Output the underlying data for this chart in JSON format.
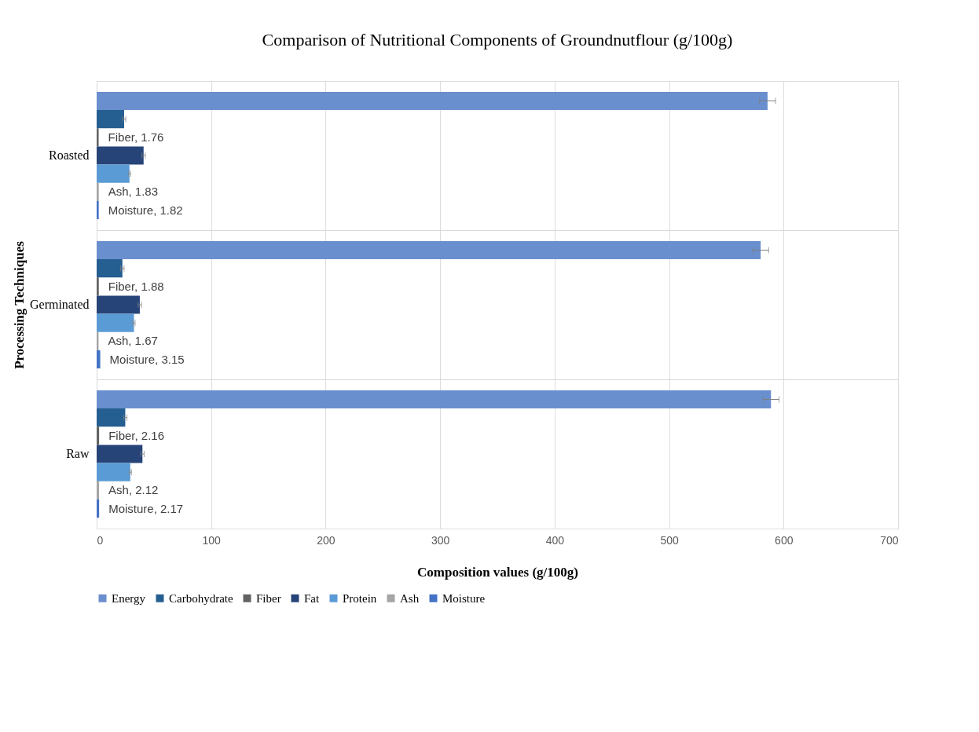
{
  "chart_data": {
    "type": "bar",
    "orientation": "horizontal",
    "title": "Comparison of Nutritional Components of Groundnutflour (g/100g)",
    "xlabel": "Composition values (g/100g)",
    "ylabel": "Processing Techniques",
    "categories": [
      "Roasted",
      "Germinated",
      "Raw"
    ],
    "series": [
      {
        "name": "Energy",
        "color": "#6a8fce",
        "values": [
          586,
          580,
          589
        ],
        "errors": [
          7,
          7,
          7
        ]
      },
      {
        "name": "Carbohydrate",
        "color": "#255e91",
        "values": [
          24,
          22.5,
          25
        ],
        "errors": [
          1.5,
          1.5,
          1.5
        ]
      },
      {
        "name": "Fiber",
        "color": "#636363",
        "values": [
          1.76,
          1.88,
          2.16
        ],
        "value_labels": [
          "Fiber, 1.76",
          "Fiber, 1.88",
          "Fiber, 2.16"
        ]
      },
      {
        "name": "Fat",
        "color": "#264478",
        "values": [
          41,
          37.7,
          40
        ],
        "errors": [
          1.5,
          1.5,
          1.5
        ]
      },
      {
        "name": "Protein",
        "color": "#5b9bd5",
        "values": [
          28.7,
          32.6,
          29.4
        ],
        "errors": [
          1,
          1,
          1
        ]
      },
      {
        "name": "Ash",
        "color": "#a5a5a5",
        "values": [
          1.83,
          1.67,
          2.12
        ],
        "value_labels": [
          "Ash, 1.83",
          "Ash, 1.67",
          "Ash, 2.12"
        ]
      },
      {
        "name": "Moisture",
        "color": "#4472c4",
        "values": [
          1.82,
          3.15,
          2.17
        ],
        "value_labels": [
          "Moisture, 1.82",
          "Moisture, 3.15",
          "Moisture, 2.17"
        ]
      }
    ],
    "xlim": [
      0,
      700
    ],
    "xticks": [
      0,
      100,
      200,
      300,
      400,
      500,
      600,
      700
    ],
    "grid": "x",
    "legend": "bottom"
  }
}
